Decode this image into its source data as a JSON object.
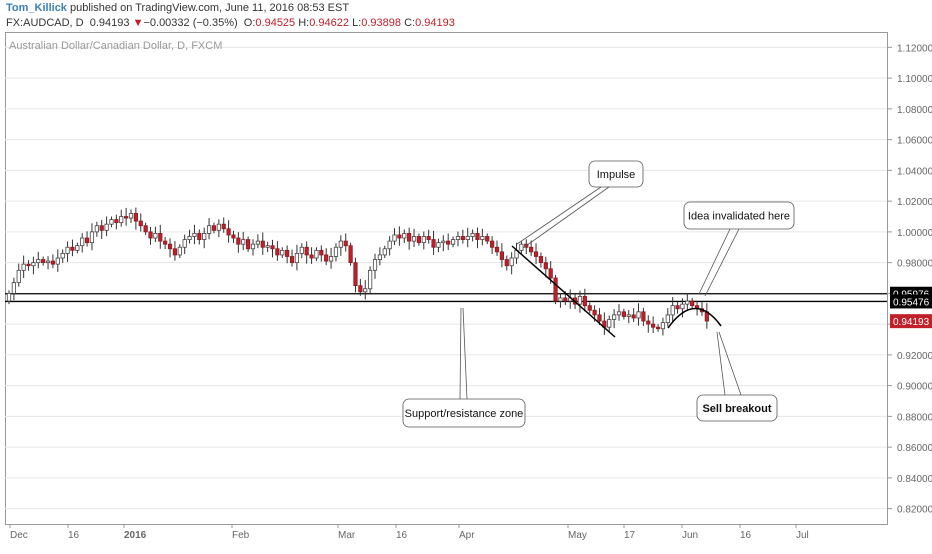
{
  "header": {
    "author": "Tom_Killick",
    "published_text": " published on TradingView.com, June 11, 2016 08:53 EST",
    "symbol": "FX:AUDCAD, D",
    "last": "0.94193",
    "change_arrow": "▼",
    "change": "−0.00332 (−0.35%)",
    "open_label": "O:",
    "open": "0.94525",
    "high_label": "H:",
    "high": "0.94622",
    "low_label": "L:",
    "low": "0.93898",
    "close_label": "C:",
    "close": "0.94193"
  },
  "chart_data": {
    "type": "candlestick",
    "title": "Australian Dollar/Canadian Dollar, D, FXCM",
    "ylim": [
      0.81,
      1.13
    ],
    "y_ticks": [
      "1.12000",
      "1.10000",
      "1.08000",
      "1.06000",
      "1.04000",
      "1.02000",
      "1.00000",
      "0.98000",
      "0.96000",
      "0.94000",
      "0.92000",
      "0.90000",
      "0.88000",
      "0.86000",
      "0.84000",
      "0.82000"
    ],
    "x_ticks": [
      "Dec",
      "16",
      "2016",
      "Feb",
      "Mar",
      "16",
      "Apr",
      "May",
      "17",
      "Jun",
      "16",
      "Jul"
    ],
    "price_labels": [
      {
        "text": "0.95976",
        "value": 0.95976
      },
      {
        "text": "0.95476",
        "value": 0.95476
      },
      {
        "text": "0.94193",
        "value": 0.94193
      }
    ],
    "annotations": [
      "Impulse",
      "Idea invalidated here",
      "Support/resistance zone",
      "Sell breakout"
    ],
    "closes": [
      0.96,
      0.967,
      0.975,
      0.979,
      0.978,
      0.98,
      0.982,
      0.98,
      0.981,
      0.979,
      0.983,
      0.986,
      0.99,
      0.988,
      0.991,
      0.996,
      0.993,
      1.0,
      1.004,
      1.001,
      1.005,
      1.008,
      1.006,
      1.01,
      1.009,
      1.012,
      1.007,
      1.004,
      1.0,
      0.996,
      0.999,
      0.994,
      0.992,
      0.989,
      0.985,
      0.99,
      0.995,
      0.997,
      0.999,
      0.995,
      0.999,
      1.004,
      1.001,
      1.005,
      1.002,
      0.998,
      0.996,
      0.992,
      0.995,
      0.989,
      0.992,
      0.994,
      0.99,
      0.991,
      0.989,
      0.985,
      0.988,
      0.984,
      0.98,
      0.986,
      0.99,
      0.985,
      0.983,
      0.988,
      0.985,
      0.981,
      0.984,
      0.99,
      0.994,
      0.991,
      0.98,
      0.965,
      0.961,
      0.963,
      0.975,
      0.982,
      0.985,
      0.989,
      0.994,
      0.998,
      0.996,
      0.999,
      0.994,
      0.997,
      0.993,
      0.997,
      0.995,
      0.99,
      0.993,
      0.994,
      0.992,
      0.995,
      0.997,
      0.995,
      0.997,
      0.999,
      0.995,
      0.997,
      0.994,
      0.99,
      0.987,
      0.982,
      0.978,
      0.983,
      0.988,
      0.992,
      0.99,
      0.987,
      0.984,
      0.98,
      0.976,
      0.97,
      0.955,
      0.957,
      0.955,
      0.957,
      0.953,
      0.958,
      0.952,
      0.949,
      0.946,
      0.942,
      0.938,
      0.943,
      0.946,
      0.948,
      0.945,
      0.946,
      0.944,
      0.948,
      0.942,
      0.94,
      0.938,
      0.937,
      0.941,
      0.946,
      0.952,
      0.95,
      0.953,
      0.955,
      0.952,
      0.95,
      0.948,
      0.942
    ]
  },
  "colors": {
    "up": "#ffffff",
    "down": "#c0202a",
    "wick": "#333333",
    "grid": "#e6e6e6",
    "axis_text": "#666666",
    "label_bg": "#000000",
    "last_bg": "#c0202a"
  }
}
